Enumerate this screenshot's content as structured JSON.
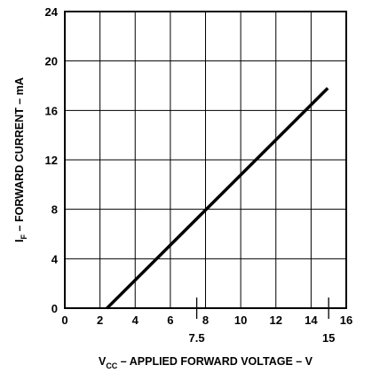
{
  "chart_data": {
    "type": "line",
    "xlabel": {
      "main": "V",
      "sub": "CC",
      "rest": " – APPLIED FORWARD VOLTAGE – V"
    },
    "ylabel": {
      "main": "I",
      "sub": "F",
      "rest": " – FORWARD CURRENT – mA"
    },
    "xlim": [
      0,
      16
    ],
    "ylim": [
      0,
      24
    ],
    "xticks": [
      "0",
      "2",
      "4",
      "6",
      "8",
      "10",
      "12",
      "14",
      "16"
    ],
    "yticks": [
      "0",
      "4",
      "8",
      "12",
      "16",
      "20",
      "24"
    ],
    "extra_xticks": [
      {
        "x": 7.5,
        "label": "7.5"
      },
      {
        "x": 15,
        "label": "15"
      }
    ],
    "grid": true,
    "series": [
      {
        "x": [
          2.4,
          14.95
        ],
        "y": [
          0,
          17.8
        ]
      }
    ]
  }
}
